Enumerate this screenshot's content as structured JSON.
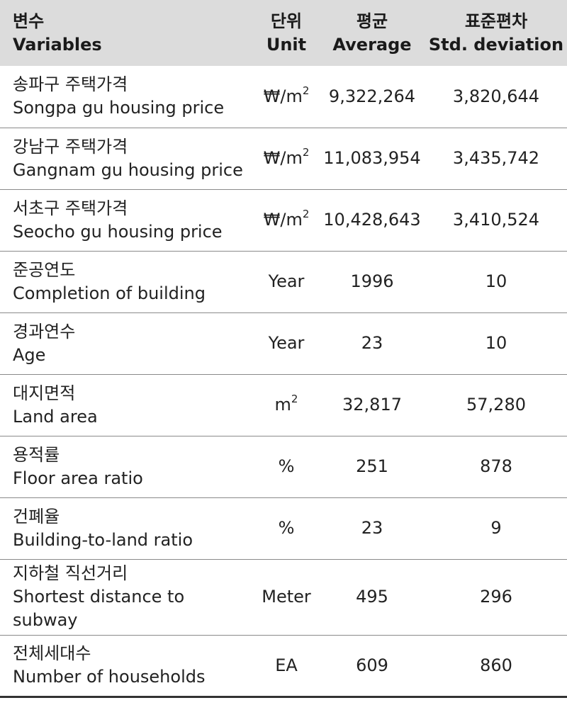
{
  "header": {
    "variables_kr": "변수",
    "variables_en": "Variables",
    "unit_kr": "단위",
    "unit_en": "Unit",
    "average_kr": "평균",
    "average_en": "Average",
    "std_kr": "표준편차",
    "std_en": "Std. deviation"
  },
  "rows": [
    {
      "kr": "송파구 주택가격",
      "en": "Songpa gu housing price",
      "en2": "",
      "unit_base": "₩/m",
      "unit_sup": "2",
      "average": "9,322,264",
      "std": "3,820,644"
    },
    {
      "kr": "강남구 주택가격",
      "en": "Gangnam gu housing price",
      "en2": "",
      "unit_base": "₩/m",
      "unit_sup": "2",
      "average": "11,083,954",
      "std": "3,435,742"
    },
    {
      "kr": "서초구 주택가격",
      "en": "Seocho gu housing price",
      "en2": "",
      "unit_base": "₩/m",
      "unit_sup": "2",
      "average": "10,428,643",
      "std": "3,410,524"
    },
    {
      "kr": "준공연도",
      "en": "Completion of building",
      "en2": "",
      "unit_base": "Year",
      "unit_sup": "",
      "average": "1996",
      "std": "10"
    },
    {
      "kr": "경과연수",
      "en": "Age",
      "en2": "",
      "unit_base": "Year",
      "unit_sup": "",
      "average": "23",
      "std": "10"
    },
    {
      "kr": "대지면적",
      "en": "Land area",
      "en2": "",
      "unit_base": "m",
      "unit_sup": "2",
      "average": "32,817",
      "std": "57,280"
    },
    {
      "kr": "용적률",
      "en": "Floor area ratio",
      "en2": "",
      "unit_base": "%",
      "unit_sup": "",
      "average": "251",
      "std": "878"
    },
    {
      "kr": "건폐율",
      "en": "Building-to-land ratio",
      "en2": "",
      "unit_base": "%",
      "unit_sup": "",
      "average": "23",
      "std": "9"
    },
    {
      "kr": "지하철 직선거리",
      "en": "Shortest distance to",
      "en2": "subway",
      "unit_base": "Meter",
      "unit_sup": "",
      "average": "495",
      "std": "296"
    },
    {
      "kr": "전체세대수",
      "en": "Number of households",
      "en2": "",
      "unit_base": "EA",
      "unit_sup": "",
      "average": "609",
      "std": "860"
    }
  ]
}
